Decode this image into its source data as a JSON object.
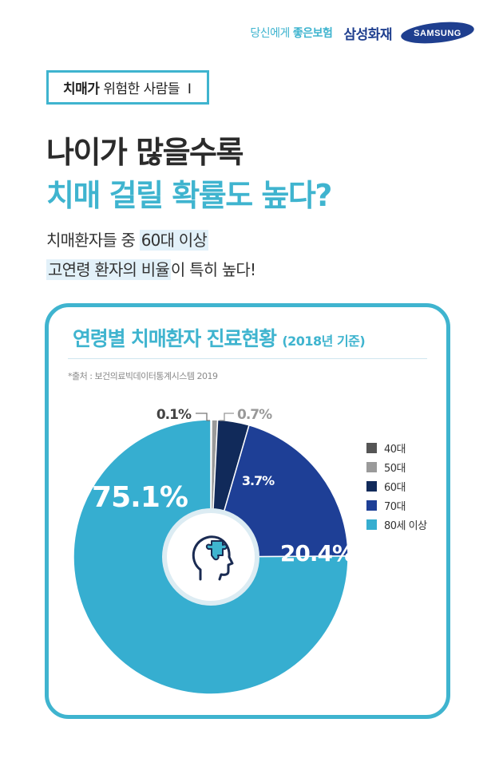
{
  "header": {
    "tagline_pre": "당신에게 ",
    "tagline_bold": "좋은보험",
    "brand_name": "삼성화재",
    "logo_text": "SAMSUNG"
  },
  "series_tag": {
    "strong": "치매가",
    "rest": " 위험한 사람들",
    "divider": "I"
  },
  "headline": {
    "line1": "나이가 많을수록",
    "line2": "치매 걸릴 확률도 높다?"
  },
  "subtext": {
    "line1_pre": "치매환자들 중 ",
    "line1_hl": "60대 이상",
    "line2_hl": "고연령 환자의 비율",
    "line2_post": "이 특히 높다!"
  },
  "chart_data": {
    "type": "pie",
    "title": "연령별 치매환자 진료현황",
    "title_paren": "(2018년 기준)",
    "source": "*출처 : 보건의료빅데이터통계시스템 2019",
    "legend_position": "right",
    "categories": [
      "40대",
      "50대",
      "60대",
      "70대",
      "80세 이상"
    ],
    "values": [
      0.1,
      0.7,
      3.7,
      20.4,
      75.1
    ],
    "labels": [
      "0.1%",
      "0.7%",
      "3.7%",
      "20.4%",
      "75.1%"
    ],
    "colors": [
      "#555555",
      "#9a9a9a",
      "#112a5a",
      "#1e3f96",
      "#36aed0"
    ]
  },
  "center_icon": "head-puzzle-icon"
}
